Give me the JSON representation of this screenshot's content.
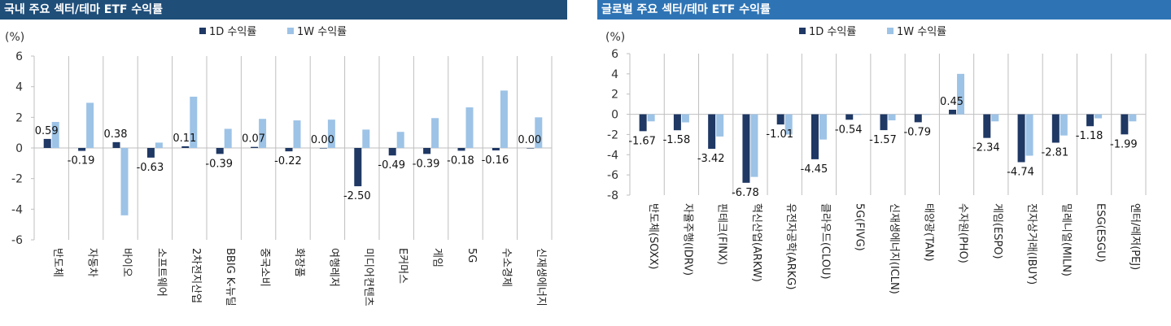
{
  "colors": {
    "d1": "#1f3864",
    "w1": "#9dc3e6",
    "axis": "#bfbfbf"
  },
  "chart_data": [
    {
      "type": "bar",
      "title": "국내 주요 섹터/테마 ETF 수익률",
      "unit": "(%)",
      "ylim": [
        -6,
        6
      ],
      "yticks": [
        -6,
        -4,
        -2,
        0,
        2,
        4,
        6
      ],
      "categories": [
        "반도체",
        "자동차",
        "바이오",
        "소프트웨어",
        "2차전지산업",
        "BBIG K-뉴딜",
        "중국소비",
        "화장품",
        "여행레저",
        "미디어컨텐츠",
        "E커머스",
        "게임",
        "5G",
        "수소경제",
        "신재생에너지"
      ],
      "series": [
        {
          "name": "1D 수익률",
          "values": [
            0.59,
            -0.19,
            0.38,
            -0.63,
            0.11,
            -0.39,
            0.07,
            -0.22,
            0.0,
            -2.5,
            -0.49,
            -0.39,
            -0.18,
            -0.16,
            0.0
          ],
          "labels": [
            "0.59",
            "-0.19",
            "0.38",
            "-0.63",
            "0.11",
            "-0.39",
            "0.07",
            "-0.22",
            "0.00",
            "-2.50",
            "-0.49",
            "-0.39",
            "-0.18",
            "-0.16",
            "0.00"
          ]
        },
        {
          "name": "1W 수익률",
          "values": [
            1.7,
            2.95,
            -4.4,
            0.35,
            3.35,
            1.25,
            1.9,
            1.8,
            1.85,
            1.2,
            1.05,
            1.95,
            2.65,
            3.75,
            2.0
          ]
        }
      ]
    },
    {
      "type": "bar",
      "title": "글로벌 주요 섹터/테마 ETF 수익률",
      "unit": "(%)",
      "ylim": [
        -8,
        6
      ],
      "yticks": [
        -8,
        -6,
        -4,
        -2,
        0,
        2,
        4,
        6
      ],
      "categories": [
        "반도체(SOXX)",
        "자율주행(IDRV)",
        "핀테크(FINX)",
        "혁신산업(ARKW)",
        "유전자공학(ARKG)",
        "클라우드(CLOU)",
        "5G(FIVG)",
        "신재생에너지(ICLN)",
        "태양광(TAN)",
        "수자원(PHO)",
        "게임(ESPO)",
        "전자상거래(IBUY)",
        "밀레니얼(MILN)",
        "ESG(ESGU)",
        "엔터/레저(PEJ)"
      ],
      "series": [
        {
          "name": "1D 수익률",
          "values": [
            -1.67,
            -1.58,
            -3.42,
            -6.78,
            -1.01,
            -4.45,
            -0.54,
            -1.57,
            -0.79,
            0.45,
            -2.34,
            -4.74,
            -2.81,
            -1.18,
            -1.99
          ],
          "labels": [
            "-1.67",
            "-1.58",
            "-3.42",
            "-6.78",
            "-1.01",
            "-4.45",
            "-0.54",
            "-1.57",
            "-0.79",
            "0.45",
            "-2.34",
            "-4.74",
            "-2.81",
            "-1.18",
            "-1.99"
          ]
        },
        {
          "name": "1W 수익률",
          "values": [
            -0.7,
            -0.8,
            -2.2,
            -6.2,
            -2.0,
            -2.5,
            -0.05,
            -0.6,
            -0.05,
            4.0,
            -0.7,
            -4.1,
            -2.1,
            -0.4,
            -0.7
          ]
        }
      ]
    }
  ]
}
